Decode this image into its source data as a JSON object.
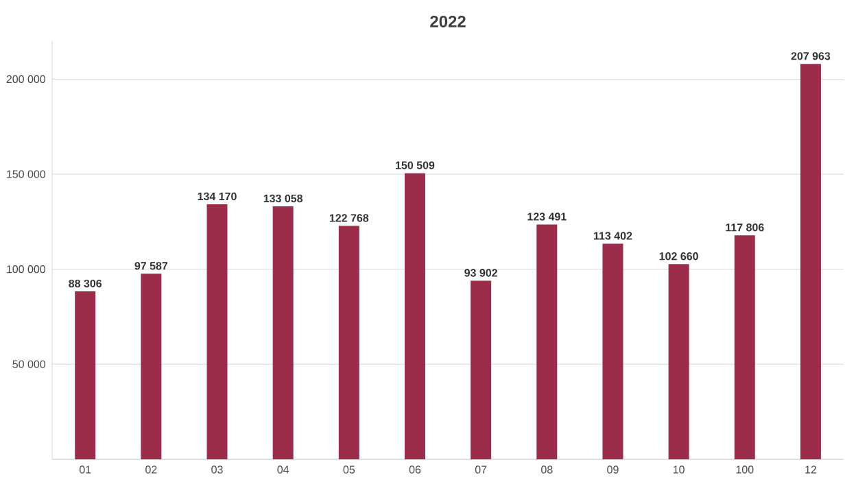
{
  "chart_data": {
    "type": "bar",
    "title": "2022",
    "categories": [
      "01",
      "02",
      "03",
      "04",
      "05",
      "06",
      "07",
      "08",
      "09",
      "10",
      "100",
      "12"
    ],
    "values": [
      88306,
      97587,
      134170,
      133058,
      122768,
      150509,
      93902,
      123491,
      113402,
      102660,
      117806,
      207963
    ],
    "value_labels": [
      "88 306",
      "97 587",
      "134 170",
      "133 058",
      "122 768",
      "150 509",
      "93 902",
      "123 491",
      "113 402",
      "102 660",
      "117 806",
      "207 963"
    ],
    "color": "#9b2d4a",
    "ylim": [
      0,
      220000
    ],
    "yticks": [
      {
        "value": 50000,
        "label": "50 000"
      },
      {
        "value": 100000,
        "label": "100 000"
      },
      {
        "value": 150000,
        "label": "150 000"
      },
      {
        "value": 200000,
        "label": "200 000"
      }
    ],
    "grid": "y"
  }
}
